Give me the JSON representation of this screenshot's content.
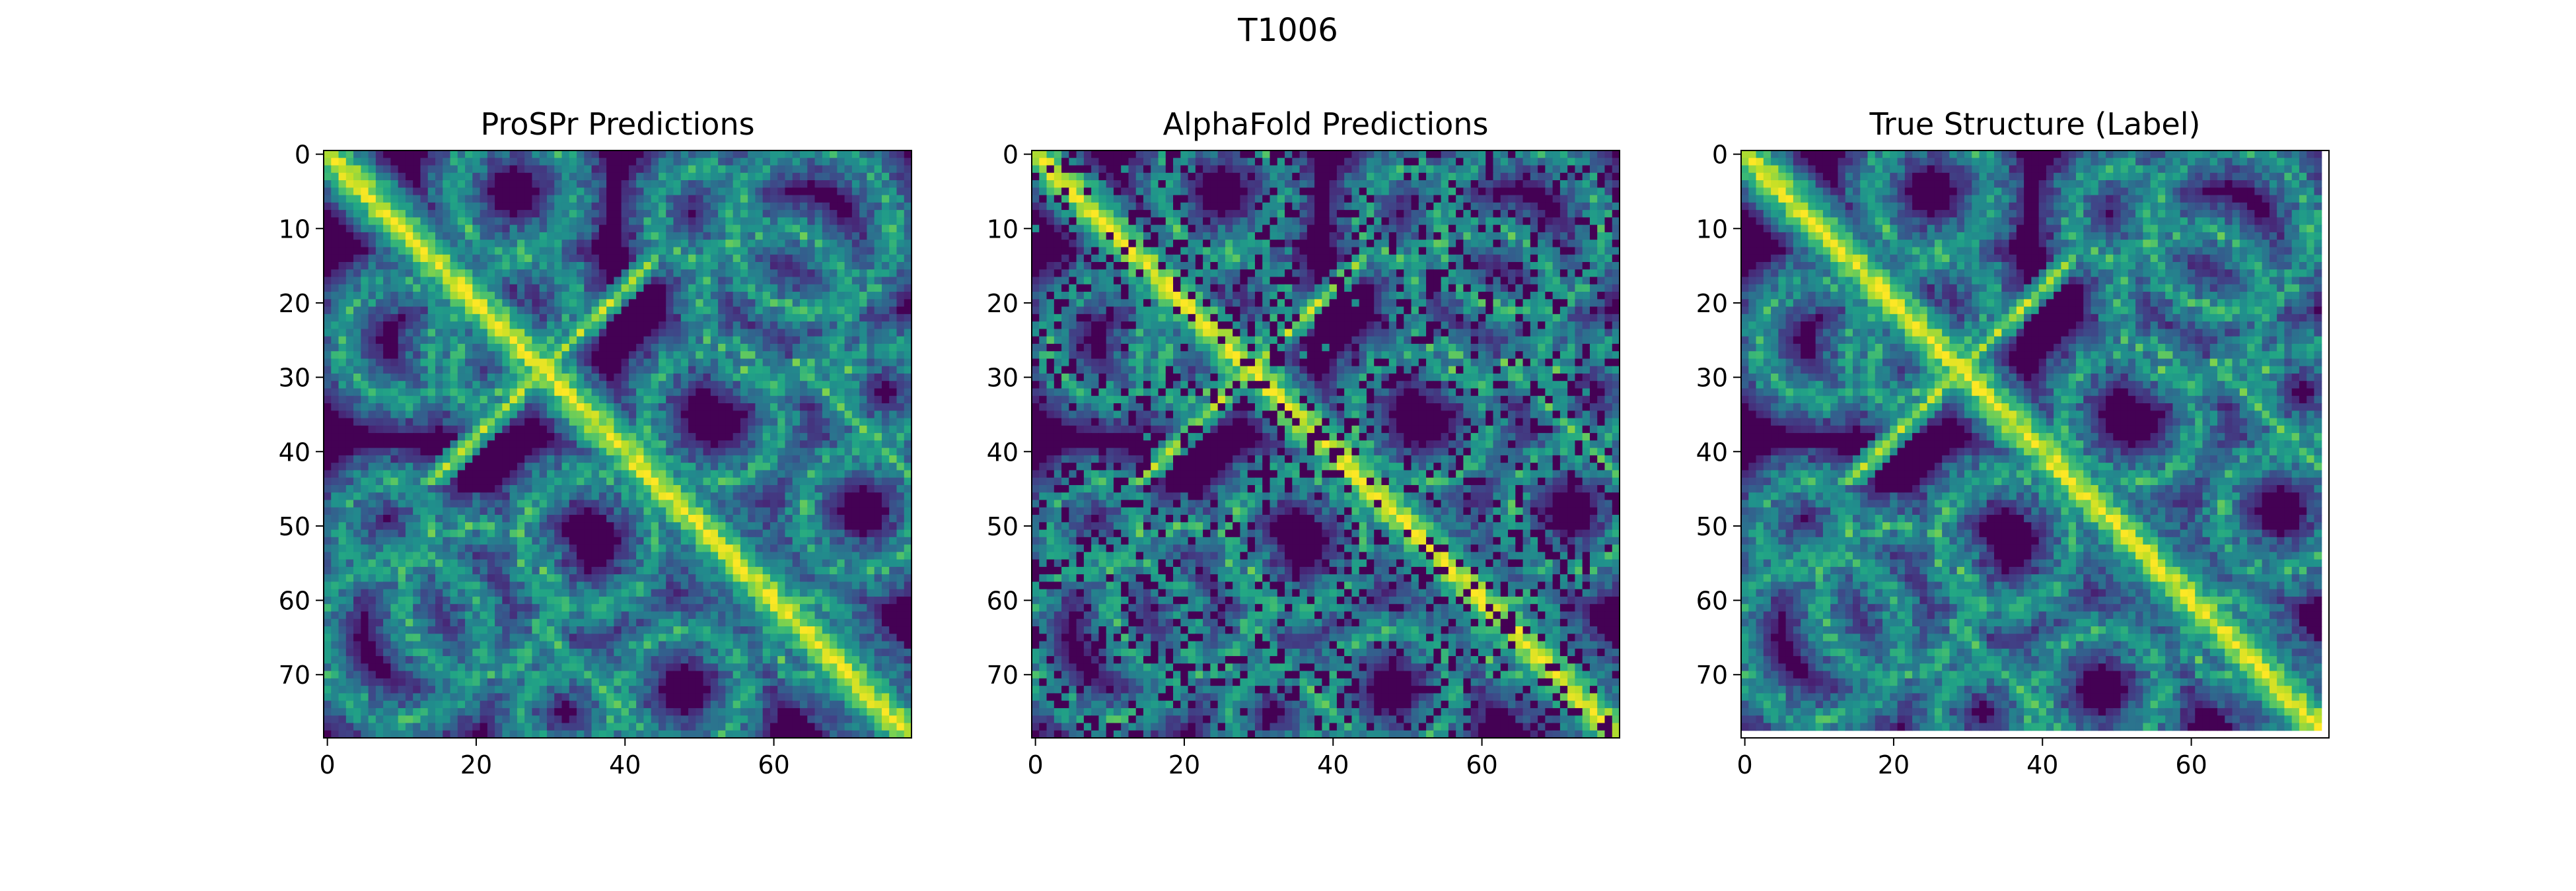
{
  "figure": {
    "suptitle": "T1006"
  },
  "colormap": {
    "name": "viridis",
    "low": "#440154",
    "mid": "#21918c",
    "high": "#fde725"
  },
  "chart_data": [
    {
      "type": "heatmap",
      "title": "ProSPr Predictions",
      "xlabel": "",
      "ylabel": "",
      "matrix_size": 79,
      "xlim": [
        0,
        78
      ],
      "ylim": [
        78,
        0
      ],
      "x_ticks": [
        0,
        20,
        40,
        60
      ],
      "y_ticks": [
        0,
        10,
        20,
        30,
        40,
        50,
        60,
        70
      ],
      "pattern": {
        "diagonal_band": true,
        "antidiagonal_pair": [
          30,
          29
        ],
        "symmetric": true,
        "noise": "low"
      }
    },
    {
      "type": "heatmap",
      "title": "AlphaFold Predictions",
      "xlabel": "",
      "ylabel": "",
      "matrix_size": 79,
      "xlim": [
        0,
        78
      ],
      "ylim": [
        78,
        0
      ],
      "x_ticks": [
        0,
        20,
        40,
        60
      ],
      "y_ticks": [
        0,
        10,
        20,
        30,
        40,
        50,
        60,
        70
      ],
      "pattern": {
        "diagonal_band": true,
        "antidiagonal_pair": [
          30,
          29
        ],
        "symmetric": false,
        "noise": "speckled"
      }
    },
    {
      "type": "heatmap",
      "title": "True Structure (Label)",
      "xlabel": "",
      "ylabel": "",
      "matrix_size": 78,
      "xlim": [
        0,
        78
      ],
      "ylim": [
        78,
        0
      ],
      "x_ticks": [
        0,
        20,
        40,
        60
      ],
      "y_ticks": [
        0,
        10,
        20,
        30,
        40,
        50,
        60,
        70
      ],
      "pattern": {
        "diagonal_band": true,
        "antidiagonal_pair": [
          30,
          29
        ],
        "symmetric": true,
        "noise": "low"
      }
    }
  ]
}
